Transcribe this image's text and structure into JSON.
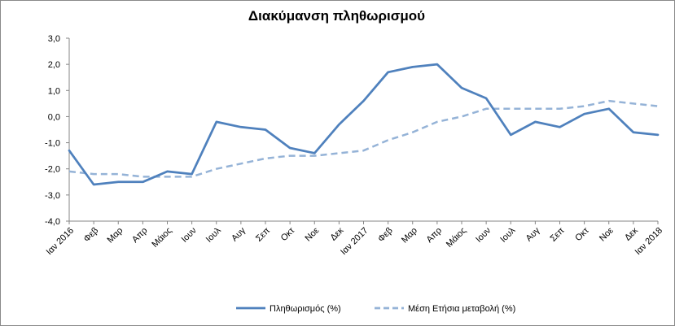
{
  "chart_data": {
    "type": "line",
    "title": "Διακύμανση πληθωρισμού",
    "xlabel": "",
    "ylabel": "",
    "ylim": [
      -4.0,
      3.0
    ],
    "yticks": [
      "3,0",
      "2,0",
      "1,0",
      "0,0",
      "-1,0",
      "-2,0",
      "-3,0",
      "-4,0"
    ],
    "grid": false,
    "legend_position": "bottom",
    "categories": [
      "Ιαν 2016",
      "Φεβ",
      "Μαρ",
      "Απρ",
      "Μάιος",
      "Ιουν",
      "Ιουλ",
      "Αυγ",
      "Σεπ",
      "Οκτ",
      "Νοε",
      "Δεκ",
      "Ιαν 2017",
      "Φεβ",
      "Μαρ",
      "Απρ",
      "Μάιος",
      "Ιουν",
      "Ιουλ",
      "Αυγ",
      "Σεπ",
      "Οκτ",
      "Νοε",
      "Δεκ",
      "Ιαν 2018"
    ],
    "series": [
      {
        "name": "Πληθωρισμός (%)",
        "style": "solid",
        "color": "#4f81bd",
        "values": [
          -1.3,
          -2.6,
          -2.5,
          -2.5,
          -2.1,
          -2.2,
          -0.2,
          -0.4,
          -0.5,
          -1.2,
          -1.4,
          -0.3,
          0.6,
          1.7,
          1.9,
          2.0,
          1.1,
          0.7,
          -0.7,
          -0.2,
          -0.4,
          0.1,
          0.3,
          -0.6,
          -0.7
        ]
      },
      {
        "name": "Μέση Ετήσια μεταβολή (%)",
        "style": "dashed",
        "color": "#95b3d7",
        "values": [
          -2.1,
          -2.2,
          -2.2,
          -2.3,
          -2.3,
          -2.3,
          -2.0,
          -1.8,
          -1.6,
          -1.5,
          -1.5,
          -1.4,
          -1.3,
          -0.9,
          -0.6,
          -0.2,
          0.0,
          0.3,
          0.3,
          0.3,
          0.3,
          0.4,
          0.6,
          0.5,
          0.4
        ]
      }
    ]
  }
}
